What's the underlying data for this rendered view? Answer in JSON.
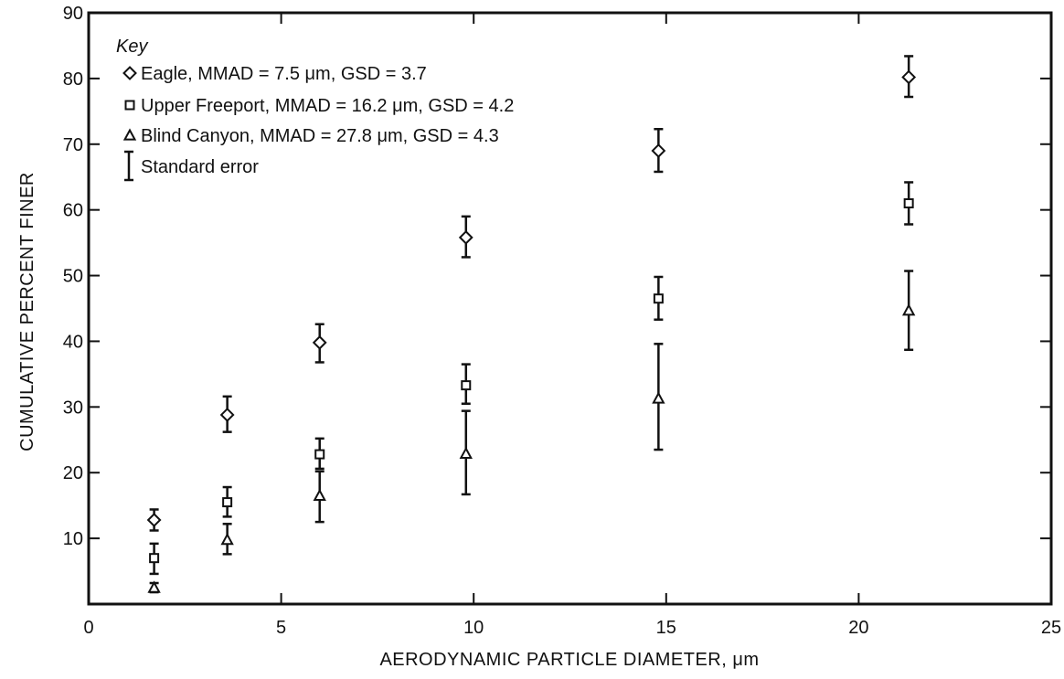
{
  "chart_data": {
    "type": "scatter",
    "title": "",
    "xlabel": "AERODYNAMIC PARTICLE DIAMETER, μm",
    "ylabel": "CUMULATIVE PERCENT FINER",
    "xlim": [
      0,
      25
    ],
    "ylim": [
      0,
      90
    ],
    "x_ticks": [
      0,
      5,
      10,
      15,
      20,
      25
    ],
    "y_ticks": [
      10,
      20,
      30,
      40,
      50,
      60,
      70,
      80,
      90
    ],
    "grid": false,
    "legend": {
      "title": "Key",
      "placement": "top-left",
      "error_label": "Standard error"
    },
    "series": [
      {
        "name": "Eagle, MMAD = 7.5 μm, GSD = 3.7",
        "marker": "diamond",
        "points": [
          {
            "x": 1.7,
            "y": 12.8,
            "err_low": 11.2,
            "err_high": 14.4
          },
          {
            "x": 3.6,
            "y": 28.8,
            "err_low": 26.2,
            "err_high": 31.6
          },
          {
            "x": 6.0,
            "y": 39.8,
            "err_low": 36.8,
            "err_high": 42.6
          },
          {
            "x": 9.8,
            "y": 55.8,
            "err_low": 52.8,
            "err_high": 59.0
          },
          {
            "x": 14.8,
            "y": 69.0,
            "err_low": 65.8,
            "err_high": 72.3
          },
          {
            "x": 21.3,
            "y": 80.2,
            "err_low": 77.2,
            "err_high": 83.4
          }
        ]
      },
      {
        "name": "Upper Freeport, MMAD = 16.2 μm, GSD = 4.2",
        "marker": "square",
        "points": [
          {
            "x": 1.7,
            "y": 7.0,
            "err_low": 4.6,
            "err_high": 9.2
          },
          {
            "x": 3.6,
            "y": 15.5,
            "err_low": 13.3,
            "err_high": 17.8
          },
          {
            "x": 6.0,
            "y": 22.8,
            "err_low": 20.6,
            "err_high": 25.2
          },
          {
            "x": 9.8,
            "y": 33.3,
            "err_low": 30.5,
            "err_high": 36.5
          },
          {
            "x": 14.8,
            "y": 46.5,
            "err_low": 43.3,
            "err_high": 49.8
          },
          {
            "x": 21.3,
            "y": 61.0,
            "err_low": 57.8,
            "err_high": 64.2
          }
        ]
      },
      {
        "name": "Blind Canyon, MMAD = 27.8 μm, GSD = 4.3",
        "marker": "triangle",
        "points": [
          {
            "x": 1.7,
            "y": 2.5,
            "err_low": 1.8,
            "err_high": 3.2
          },
          {
            "x": 3.6,
            "y": 9.8,
            "err_low": 7.6,
            "err_high": 12.2
          },
          {
            "x": 6.0,
            "y": 16.5,
            "err_low": 12.5,
            "err_high": 20.2
          },
          {
            "x": 9.8,
            "y": 22.9,
            "err_low": 16.7,
            "err_high": 29.4
          },
          {
            "x": 14.8,
            "y": 31.3,
            "err_low": 23.5,
            "err_high": 39.6
          },
          {
            "x": 21.3,
            "y": 44.7,
            "err_low": 38.7,
            "err_high": 50.7
          }
        ]
      }
    ]
  }
}
